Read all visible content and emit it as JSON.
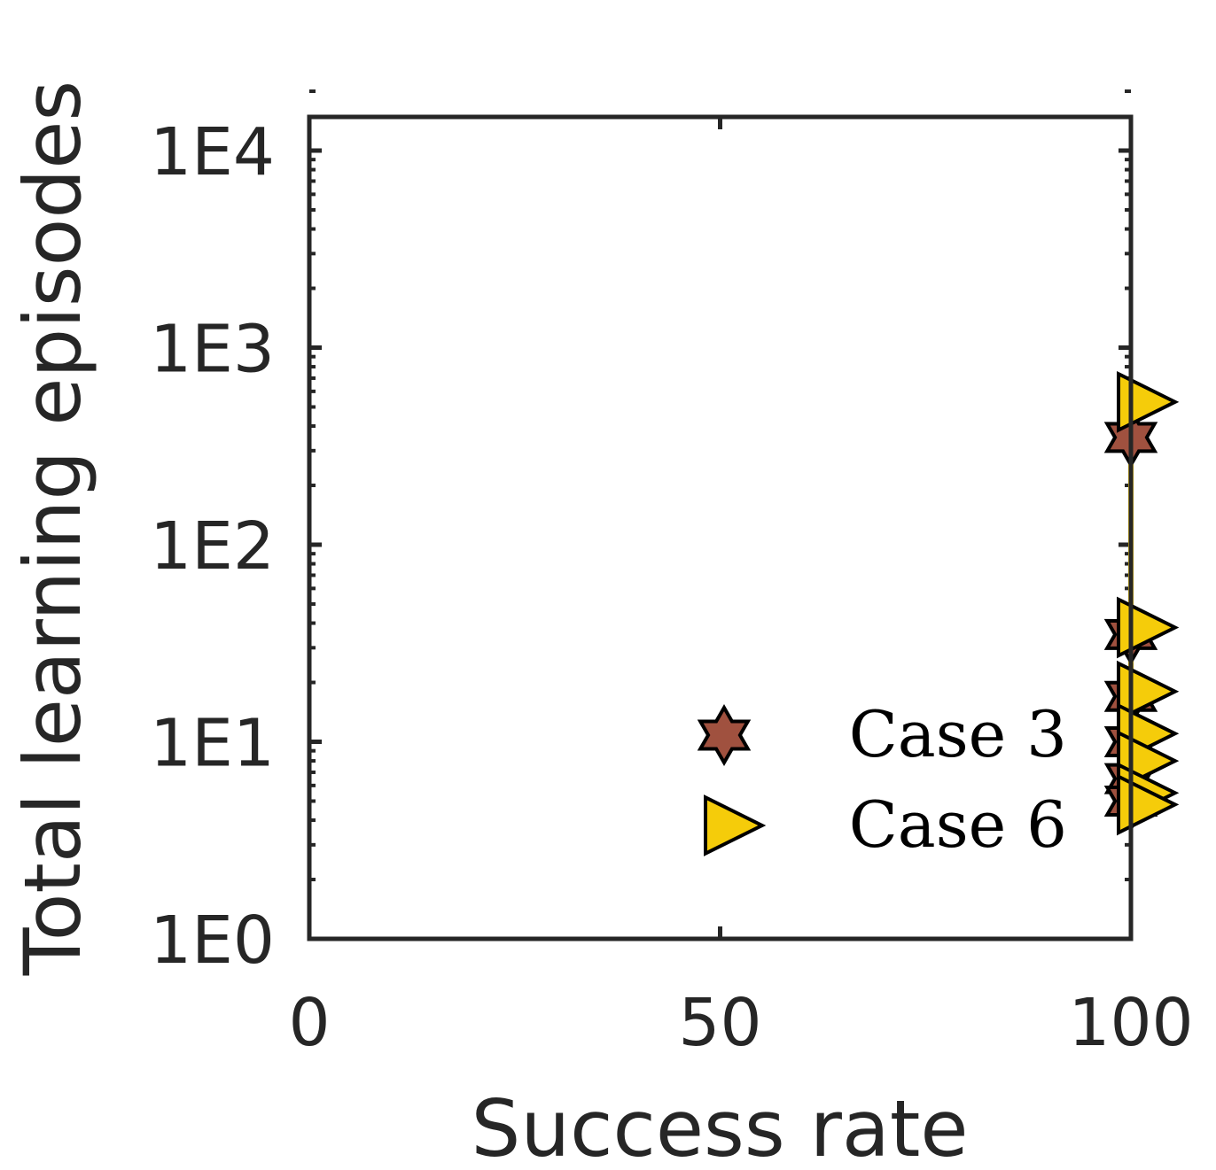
{
  "chart_data": {
    "type": "scatter",
    "xlabel": "Success rate",
    "ylabel": "Total learning episodes",
    "xlim": [
      0,
      100
    ],
    "ylim": [
      1,
      20000
    ],
    "yscale": "log",
    "xticks": [
      {
        "value": 0,
        "label": "0"
      },
      {
        "value": 50,
        "label": "50"
      },
      {
        "value": 100,
        "label": "100"
      }
    ],
    "yticks": [
      {
        "value": 1,
        "label": "1E0"
      },
      {
        "value": 10,
        "label": "1E1"
      },
      {
        "value": 100,
        "label": "1E2"
      },
      {
        "value": 1000,
        "label": "1E3"
      },
      {
        "value": 10000,
        "label": "1E4"
      }
    ],
    "grid": false,
    "legend_position": "bottom-right",
    "series": [
      {
        "name": "Case 3",
        "marker": "hexagram",
        "color": "#A0513F",
        "points": [
          {
            "x": 100,
            "y": 350
          },
          {
            "x": 100,
            "y": 35
          },
          {
            "x": 100,
            "y": 17
          },
          {
            "x": 100,
            "y": 10
          },
          {
            "x": 100,
            "y": 6.5
          },
          {
            "x": 100,
            "y": 5
          }
        ]
      },
      {
        "name": "Case 6",
        "marker": "triangle-right",
        "color": "#F5CC0A",
        "connect": true,
        "points": [
          {
            "x": 100,
            "y": 530
          },
          {
            "x": 100,
            "y": 38
          },
          {
            "x": 100,
            "y": 18
          },
          {
            "x": 100,
            "y": 11
          },
          {
            "x": 100,
            "y": 8
          },
          {
            "x": 100,
            "y": 5.5
          },
          {
            "x": 100,
            "y": 4.8
          }
        ]
      }
    ]
  }
}
